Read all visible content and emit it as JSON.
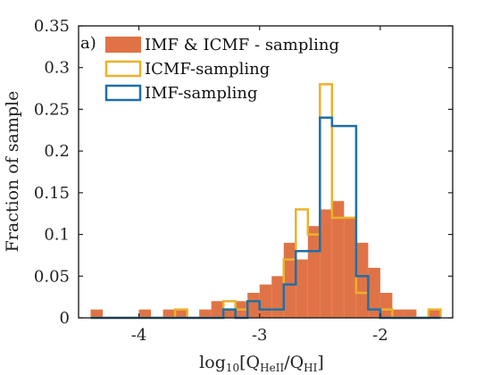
{
  "chart_data": {
    "type": "bar",
    "panel_label": "a)",
    "title": "",
    "xlabel": "log",
    "xlabel_sub": "10",
    "xlabel_rest": "[Q",
    "xlabel_sub2": "HeII",
    "xlabel_mid": "/Q",
    "xlabel_sub3": "HI",
    "xlabel_end": "]",
    "ylabel": "Fraction of sample",
    "xlim": [
      -4.5,
      -1.4
    ],
    "ylim": [
      0,
      0.35
    ],
    "xticks": [
      -4,
      -3,
      -2
    ],
    "xtick_labels": [
      "-4",
      "-3",
      "-2"
    ],
    "yticks": [
      0,
      0.05,
      0.1,
      0.15,
      0.2,
      0.25,
      0.3,
      0.35
    ],
    "ytick_labels": [
      "0",
      "0.05",
      "0.1",
      "0.15",
      "0.2",
      "0.25",
      "0.3",
      "0.35"
    ],
    "bin_edges": [
      -4.4,
      -4.3,
      -4.2,
      -4.1,
      -4.0,
      -3.9,
      -3.8,
      -3.7,
      -3.6,
      -3.5,
      -3.4,
      -3.3,
      -3.2,
      -3.1,
      -3.0,
      -2.9,
      -2.8,
      -2.7,
      -2.6,
      -2.5,
      -2.4,
      -2.3,
      -2.2,
      -2.1,
      -2.0,
      -1.9,
      -1.8,
      -1.7,
      -1.6,
      -1.5
    ],
    "series": [
      {
        "name": "IMF & ICMF - sampling",
        "style": "filled",
        "color": "#e07346",
        "values": [
          0.01,
          0,
          0,
          0,
          0.01,
          0,
          0.01,
          0.01,
          0,
          0.01,
          0.02,
          0.01,
          0.02,
          0.03,
          0.04,
          0.05,
          0.09,
          0.07,
          0.11,
          0.13,
          0.14,
          0.12,
          0.09,
          0.06,
          0.03,
          0.01,
          0.01,
          0,
          0.01
        ]
      },
      {
        "name": "ICMF-sampling",
        "style": "outline",
        "color": "#ebb12b",
        "values": [
          0,
          0,
          0,
          0,
          0,
          0,
          0,
          0.01,
          0,
          0,
          0,
          0.02,
          0.01,
          0.02,
          0.01,
          0.01,
          0.07,
          0.13,
          0.1,
          0.28,
          0.12,
          0.12,
          0.03,
          0.01,
          0.01,
          0,
          0,
          0,
          0.01
        ]
      },
      {
        "name": "IMF-sampling",
        "style": "outline",
        "color": "#1f6fa8",
        "values": [
          0,
          0,
          0,
          0,
          0,
          0,
          0,
          0,
          0,
          0,
          0,
          0.01,
          0,
          0.02,
          0.01,
          0.01,
          0.04,
          0.08,
          0.08,
          0.24,
          0.23,
          0.23,
          0.05,
          0.01,
          0,
          0,
          0,
          0,
          0
        ]
      }
    ],
    "legend_position": "top-left",
    "grid": false
  }
}
